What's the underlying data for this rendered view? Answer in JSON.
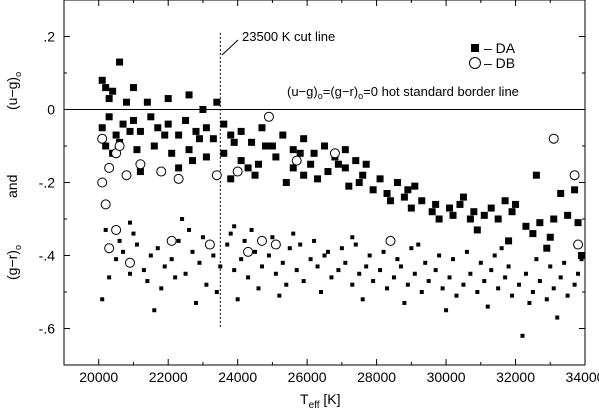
{
  "chart_data": {
    "type": "scatter",
    "xlim": [
      19000,
      34000
    ],
    "ylim": [
      -0.7,
      0.3
    ],
    "x_ticks": [
      20000,
      22000,
      24000,
      26000,
      28000,
      30000,
      32000,
      34000
    ],
    "x_tick_labels": [
      "20000",
      "22000",
      "24000",
      "26000",
      "28000",
      "30000",
      "32000",
      "34000"
    ],
    "y_ticks": [
      0.2,
      0,
      -0.2,
      -0.4,
      -0.6
    ],
    "y_tick_labels": [
      ".2",
      "0",
      "-.2",
      "-.4",
      "-.6"
    ],
    "xlabel": {
      "main": "T",
      "sub": "eff",
      "unit": " [K]"
    },
    "ylabel_left": {
      "top": "(u−g)",
      "middle": "and",
      "bottom": "(g−r)",
      "subscript": "o"
    },
    "legend": {
      "position": "top-right",
      "entries": [
        "– DA",
        "– DB"
      ]
    },
    "annotations": {
      "cut_line_label": "23500 K cut line",
      "cut_line_x": 23500,
      "cut_line_y_range": [
        -0.6,
        0.21
      ],
      "border_line_label": "(u−g)o=(g−r)o=0 hot standard border line",
      "border_line_y": 0
    },
    "grid": false,
    "series": [
      {
        "name": "– DA",
        "marker": "filled-square",
        "points": [
          [
            20100,
            0.08
          ],
          [
            20200,
            0.06
          ],
          [
            20400,
            0.05
          ],
          [
            20600,
            0.13
          ],
          [
            21000,
            0.06
          ],
          [
            20300,
            0.03
          ],
          [
            20800,
            0.02
          ],
          [
            21400,
            0.02
          ],
          [
            22000,
            0.03
          ],
          [
            22600,
            0.04
          ],
          [
            23000,
            0.0
          ],
          [
            23400,
            0.02
          ],
          [
            20100,
            -0.05
          ],
          [
            20300,
            -0.02
          ],
          [
            20500,
            -0.07
          ],
          [
            20700,
            -0.04
          ],
          [
            21000,
            -0.03
          ],
          [
            21200,
            -0.06
          ],
          [
            21500,
            -0.02
          ],
          [
            21700,
            -0.05
          ],
          [
            22000,
            -0.04
          ],
          [
            22300,
            -0.07
          ],
          [
            22500,
            -0.03
          ],
          [
            22800,
            -0.06
          ],
          [
            23100,
            -0.05
          ],
          [
            23300,
            -0.08
          ],
          [
            23600,
            -0.04
          ],
          [
            23800,
            -0.07
          ],
          [
            24100,
            -0.06
          ],
          [
            24400,
            -0.09
          ],
          [
            24700,
            -0.05
          ],
          [
            25000,
            -0.1
          ],
          [
            25300,
            -0.07
          ],
          [
            25600,
            -0.11
          ],
          [
            25900,
            -0.08
          ],
          [
            26200,
            -0.12
          ],
          [
            26500,
            -0.1
          ],
          [
            26800,
            -0.13
          ],
          [
            27100,
            -0.11
          ],
          [
            27400,
            -0.14
          ],
          [
            27700,
            -0.15
          ],
          [
            20200,
            -0.1
          ],
          [
            20600,
            -0.09
          ],
          [
            21100,
            -0.11
          ],
          [
            21600,
            -0.1
          ],
          [
            22100,
            -0.12
          ],
          [
            22600,
            -0.11
          ],
          [
            23100,
            -0.13
          ],
          [
            23600,
            -0.12
          ],
          [
            24100,
            -0.14
          ],
          [
            24600,
            -0.15
          ],
          [
            25100,
            -0.13
          ],
          [
            25600,
            -0.16
          ],
          [
            26100,
            -0.15
          ],
          [
            26600,
            -0.17
          ],
          [
            27100,
            -0.16
          ],
          [
            27600,
            -0.18
          ],
          [
            28100,
            -0.19
          ],
          [
            28600,
            -0.2
          ],
          [
            29100,
            -0.21
          ],
          [
            21200,
            -0.17
          ],
          [
            22300,
            -0.16
          ],
          [
            23800,
            -0.19
          ],
          [
            24500,
            -0.18
          ],
          [
            25400,
            -0.2
          ],
          [
            26300,
            -0.19
          ],
          [
            27200,
            -0.21
          ],
          [
            28300,
            -0.23
          ],
          [
            28800,
            -0.24
          ],
          [
            29300,
            -0.25
          ],
          [
            29700,
            -0.26
          ],
          [
            30100,
            -0.27
          ],
          [
            30400,
            -0.26
          ],
          [
            30800,
            -0.28
          ],
          [
            31100,
            -0.29
          ],
          [
            31500,
            -0.3
          ],
          [
            31900,
            -0.28
          ],
          [
            32300,
            -0.32
          ],
          [
            32700,
            -0.31
          ],
          [
            33100,
            -0.3
          ],
          [
            33500,
            -0.29
          ],
          [
            33800,
            -0.31
          ],
          [
            27900,
            -0.22
          ],
          [
            28400,
            -0.25
          ],
          [
            29000,
            -0.27
          ],
          [
            29600,
            -0.28
          ],
          [
            30200,
            -0.29
          ],
          [
            30700,
            -0.3
          ],
          [
            31300,
            -0.27
          ],
          [
            32000,
            -0.26
          ],
          [
            32500,
            -0.34
          ],
          [
            33000,
            -0.35
          ],
          [
            33700,
            -0.22
          ],
          [
            33900,
            -0.4
          ],
          [
            32900,
            -0.38
          ],
          [
            31800,
            -0.36
          ],
          [
            30900,
            -0.33
          ],
          [
            29800,
            -0.3
          ],
          [
            26900,
            -0.15
          ],
          [
            25800,
            -0.12
          ],
          [
            24800,
            -0.1
          ],
          [
            23900,
            -0.09
          ],
          [
            22900,
            -0.08
          ],
          [
            21900,
            -0.07
          ],
          [
            20900,
            -0.06
          ],
          [
            20400,
            -0.12
          ],
          [
            22700,
            -0.14
          ],
          [
            24300,
            -0.16
          ],
          [
            25900,
            -0.18
          ],
          [
            27500,
            -0.2
          ],
          [
            28900,
            -0.22
          ],
          [
            30500,
            -0.24
          ],
          [
            31700,
            -0.25
          ],
          [
            33300,
            -0.23
          ],
          [
            32600,
            -0.18
          ]
        ]
      },
      {
        "name": "– DB",
        "marker": "open-circle",
        "points": [
          [
            20100,
            -0.08
          ],
          [
            20500,
            -0.12
          ],
          [
            20300,
            -0.16
          ],
          [
            20800,
            -0.18
          ],
          [
            21200,
            -0.15
          ],
          [
            20200,
            -0.26
          ],
          [
            21800,
            -0.17
          ],
          [
            22300,
            -0.19
          ],
          [
            23400,
            -0.18
          ],
          [
            24000,
            -0.17
          ],
          [
            24900,
            -0.02
          ],
          [
            25700,
            -0.14
          ],
          [
            26800,
            -0.12
          ],
          [
            20600,
            -0.1
          ],
          [
            20300,
            -0.38
          ],
          [
            20900,
            -0.42
          ],
          [
            20500,
            -0.33
          ],
          [
            22100,
            -0.36
          ],
          [
            23200,
            -0.37
          ],
          [
            24300,
            -0.39
          ],
          [
            24700,
            -0.36
          ],
          [
            25100,
            -0.37
          ],
          [
            28400,
            -0.36
          ],
          [
            33100,
            -0.08
          ],
          [
            33700,
            -0.18
          ],
          [
            33800,
            -0.37
          ],
          [
            20100,
            -0.2
          ]
        ]
      },
      {
        "name": "",
        "marker": "small-filled-square",
        "points": [
          [
            20100,
            -0.52
          ],
          [
            20300,
            -0.46
          ],
          [
            20500,
            -0.41
          ],
          [
            20700,
            -0.39
          ],
          [
            20900,
            -0.45
          ],
          [
            21100,
            -0.37
          ],
          [
            21300,
            -0.44
          ],
          [
            21500,
            -0.4
          ],
          [
            21700,
            -0.38
          ],
          [
            21900,
            -0.43
          ],
          [
            22100,
            -0.41
          ],
          [
            22300,
            -0.36
          ],
          [
            22500,
            -0.45
          ],
          [
            22700,
            -0.39
          ],
          [
            22900,
            -0.42
          ],
          [
            23100,
            -0.48
          ],
          [
            23300,
            -0.4
          ],
          [
            23500,
            -0.43
          ],
          [
            23700,
            -0.37
          ],
          [
            23900,
            -0.44
          ],
          [
            24100,
            -0.41
          ],
          [
            24300,
            -0.46
          ],
          [
            24500,
            -0.39
          ],
          [
            24700,
            -0.43
          ],
          [
            24900,
            -0.4
          ],
          [
            25100,
            -0.45
          ],
          [
            25300,
            -0.42
          ],
          [
            25500,
            -0.38
          ],
          [
            25700,
            -0.44
          ],
          [
            25900,
            -0.47
          ],
          [
            26100,
            -0.41
          ],
          [
            26300,
            -0.43
          ],
          [
            26500,
            -0.4
          ],
          [
            26700,
            -0.46
          ],
          [
            26900,
            -0.44
          ],
          [
            27100,
            -0.42
          ],
          [
            27300,
            -0.48
          ],
          [
            27500,
            -0.45
          ],
          [
            27700,
            -0.43
          ],
          [
            27900,
            -0.47
          ],
          [
            28100,
            -0.44
          ],
          [
            28300,
            -0.49
          ],
          [
            28500,
            -0.46
          ],
          [
            28700,
            -0.43
          ],
          [
            28900,
            -0.48
          ],
          [
            29100,
            -0.45
          ],
          [
            29300,
            -0.5
          ],
          [
            29500,
            -0.47
          ],
          [
            29700,
            -0.44
          ],
          [
            29900,
            -0.49
          ],
          [
            30100,
            -0.46
          ],
          [
            30300,
            -0.51
          ],
          [
            30500,
            -0.48
          ],
          [
            30700,
            -0.45
          ],
          [
            30900,
            -0.5
          ],
          [
            31100,
            -0.47
          ],
          [
            31300,
            -0.44
          ],
          [
            31500,
            -0.49
          ],
          [
            31700,
            -0.46
          ],
          [
            31900,
            -0.51
          ],
          [
            32100,
            -0.48
          ],
          [
            32300,
            -0.45
          ],
          [
            32500,
            -0.5
          ],
          [
            32700,
            -0.47
          ],
          [
            32900,
            -0.52
          ],
          [
            33100,
            -0.49
          ],
          [
            33300,
            -0.46
          ],
          [
            33500,
            -0.51
          ],
          [
            33700,
            -0.48
          ],
          [
            33900,
            -0.41
          ],
          [
            20200,
            -0.33
          ],
          [
            20600,
            -0.36
          ],
          [
            21000,
            -0.34
          ],
          [
            21400,
            -0.47
          ],
          [
            21800,
            -0.49
          ],
          [
            22200,
            -0.46
          ],
          [
            22600,
            -0.33
          ],
          [
            23000,
            -0.35
          ],
          [
            23400,
            -0.5
          ],
          [
            23800,
            -0.34
          ],
          [
            24200,
            -0.36
          ],
          [
            24600,
            -0.49
          ],
          [
            25000,
            -0.35
          ],
          [
            25400,
            -0.48
          ],
          [
            25800,
            -0.37
          ],
          [
            26200,
            -0.36
          ],
          [
            26600,
            -0.39
          ],
          [
            27000,
            -0.38
          ],
          [
            27400,
            -0.37
          ],
          [
            27800,
            -0.4
          ],
          [
            28200,
            -0.39
          ],
          [
            28600,
            -0.41
          ],
          [
            29000,
            -0.38
          ],
          [
            29400,
            -0.42
          ],
          [
            29800,
            -0.4
          ],
          [
            30200,
            -0.41
          ],
          [
            30600,
            -0.39
          ],
          [
            31000,
            -0.42
          ],
          [
            31400,
            -0.4
          ],
          [
            31800,
            -0.43
          ],
          [
            32200,
            -0.62
          ],
          [
            32600,
            -0.41
          ],
          [
            33000,
            -0.43
          ],
          [
            33400,
            -0.42
          ],
          [
            33800,
            -0.45
          ],
          [
            21600,
            -0.55
          ],
          [
            22800,
            -0.53
          ],
          [
            24000,
            -0.52
          ],
          [
            25200,
            -0.51
          ],
          [
            26400,
            -0.5
          ],
          [
            27600,
            -0.52
          ],
          [
            28800,
            -0.53
          ],
          [
            30000,
            -0.55
          ],
          [
            31200,
            -0.54
          ],
          [
            32400,
            -0.53
          ],
          [
            33200,
            -0.57
          ],
          [
            20900,
            -0.31
          ],
          [
            22400,
            -0.3
          ],
          [
            23900,
            -0.32
          ],
          [
            24400,
            -0.33
          ],
          [
            25600,
            -0.34
          ],
          [
            27300,
            -0.35
          ],
          [
            29200,
            -0.37
          ],
          [
            31600,
            -0.38
          ]
        ]
      }
    ]
  }
}
